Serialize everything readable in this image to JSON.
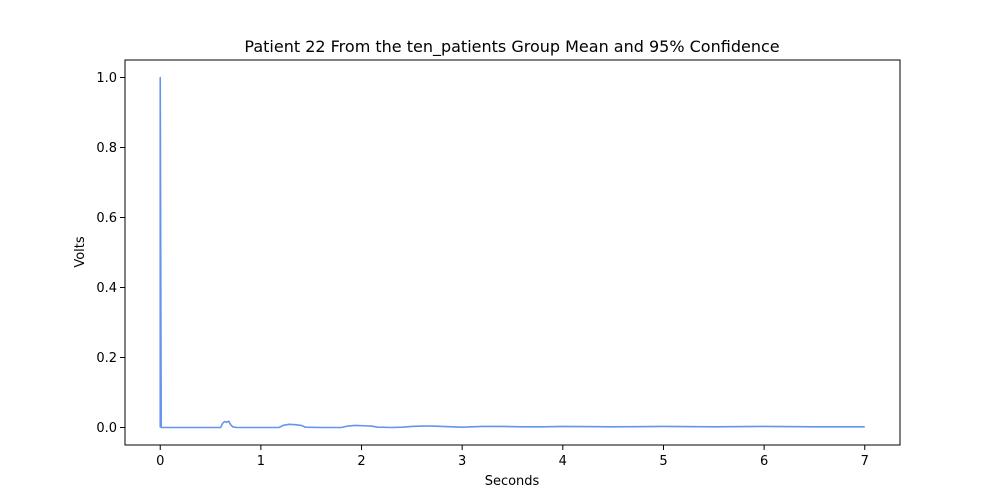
{
  "chart_data": {
    "type": "line",
    "title": "Patient 22 From the ten_patients Group Mean and 95% Confidence",
    "xlabel": "Seconds",
    "ylabel": "Volts",
    "xlim": [
      -0.35,
      7.35
    ],
    "ylim": [
      -0.05,
      1.05
    ],
    "xticks": [
      0,
      1,
      2,
      3,
      4,
      5,
      6,
      7
    ],
    "xtick_labels": [
      "0",
      "1",
      "2",
      "3",
      "4",
      "5",
      "6",
      "7"
    ],
    "yticks": [
      0.0,
      0.2,
      0.4,
      0.6,
      0.8,
      1.0
    ],
    "ytick_labels": [
      "0.0",
      "0.2",
      "0.4",
      "0.6",
      "0.8",
      "1.0"
    ],
    "grid": false,
    "series": [
      {
        "color": "#6495ed",
        "x": [
          0,
          0,
          0.01,
          0.6,
          0.62,
          0.64,
          0.66,
          0.68,
          0.7,
          0.72,
          0.76,
          1.0,
          1.18,
          1.22,
          1.28,
          1.34,
          1.4,
          1.44,
          1.6,
          1.8,
          1.86,
          1.94,
          2.02,
          2.1,
          2.16,
          2.3,
          2.4,
          2.5,
          2.6,
          2.7,
          2.8,
          2.9,
          3.0,
          3.2,
          3.4,
          3.6,
          3.8,
          4.0,
          4.5,
          5.0,
          5.5,
          6.0,
          6.5,
          7.0
        ],
        "y": [
          0.0,
          1.0,
          0.0,
          0.0,
          0.012,
          0.017,
          0.015,
          0.018,
          0.008,
          0.002,
          0.0,
          0.0,
          0.0,
          0.006,
          0.009,
          0.008,
          0.006,
          0.001,
          0.0,
          0.0,
          0.004,
          0.006,
          0.005,
          0.004,
          0.001,
          0.0,
          0.001,
          0.003,
          0.004,
          0.004,
          0.003,
          0.002,
          0.001,
          0.003,
          0.003,
          0.002,
          0.002,
          0.003,
          0.002,
          0.003,
          0.002,
          0.003,
          0.002,
          0.002
        ]
      }
    ]
  }
}
